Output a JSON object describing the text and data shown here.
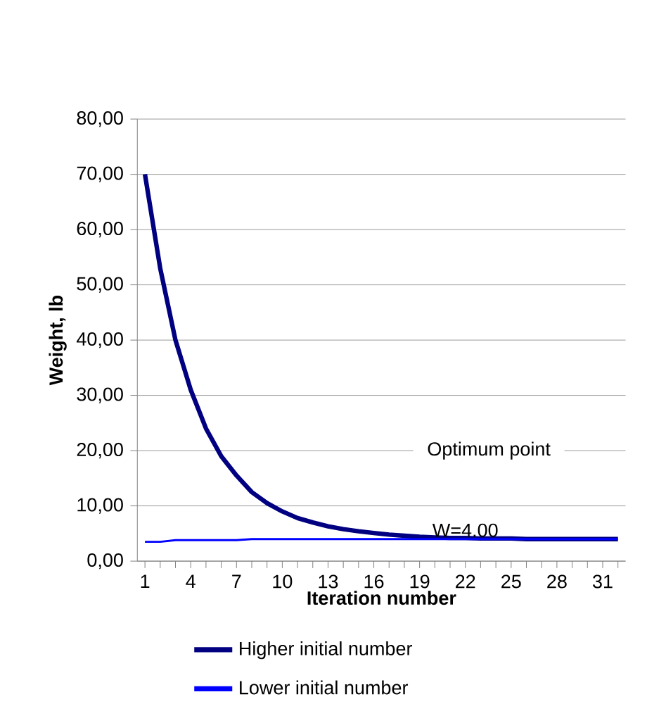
{
  "chart_data": {
    "type": "line",
    "xlabel": "Iteration number",
    "ylabel": "Weight, lb",
    "x": [
      1,
      2,
      3,
      4,
      5,
      6,
      7,
      8,
      9,
      10,
      11,
      12,
      13,
      14,
      15,
      16,
      17,
      18,
      19,
      20,
      21,
      22,
      23,
      24,
      25,
      26,
      27,
      28,
      29,
      30,
      31,
      32
    ],
    "series": [
      {
        "name": "Higher initial number",
        "color": "#000080",
        "values": [
          70,
          53,
          40,
          31,
          24,
          19,
          15.5,
          12.5,
          10.5,
          9,
          7.8,
          7,
          6.3,
          5.8,
          5.4,
          5.1,
          4.8,
          4.6,
          4.4,
          4.3,
          4.2,
          4.2,
          4.1,
          4.1,
          4.1,
          4,
          4,
          4,
          4,
          4,
          4,
          4
        ]
      },
      {
        "name": "Lower initial number",
        "color": "#0000ff",
        "values": [
          3.5,
          3.5,
          3.8,
          3.8,
          3.8,
          3.8,
          3.8,
          4,
          4,
          4,
          4,
          4,
          4,
          4,
          4,
          4,
          4,
          4,
          4,
          4,
          4,
          4,
          4,
          4,
          4,
          4,
          4,
          4,
          4,
          4,
          4,
          4
        ]
      }
    ],
    "xlim": [
      0.5,
      32.5
    ],
    "xticks": [
      1,
      {
        "value": 2,
        "label": null
      },
      {
        "value": 3,
        "label": null
      },
      4,
      {
        "value": 5,
        "label": null
      },
      {
        "value": 6,
        "label": null
      },
      7,
      {
        "value": 8,
        "label": null
      },
      {
        "value": 9,
        "label": null
      },
      10,
      {
        "value": 11,
        "label": null
      },
      {
        "value": 12,
        "label": null
      },
      13,
      {
        "value": 14,
        "label": null
      },
      {
        "value": 15,
        "label": null
      },
      16,
      {
        "value": 17,
        "label": null
      },
      {
        "value": 18,
        "label": null
      },
      19,
      {
        "value": 20,
        "label": null
      },
      {
        "value": 21,
        "label": null
      },
      22,
      {
        "value": 23,
        "label": null
      },
      {
        "value": 24,
        "label": null
      },
      25,
      {
        "value": 26,
        "label": null
      },
      {
        "value": 27,
        "label": null
      },
      28,
      {
        "value": 29,
        "label": null
      },
      {
        "value": 30,
        "label": null
      },
      31,
      {
        "value": 32,
        "label": null
      }
    ],
    "ylim": [
      0,
      80
    ],
    "yticks": [
      {
        "value": 0,
        "label": "0,00"
      },
      {
        "value": 10,
        "label": "10,00"
      },
      {
        "value": 20,
        "label": "20,00"
      },
      {
        "value": 30,
        "label": "30,00"
      },
      {
        "value": 40,
        "label": "40,00"
      },
      {
        "value": 50,
        "label": "50,00"
      },
      {
        "value": 60,
        "label": "60,00"
      },
      {
        "value": 70,
        "label": "70,00"
      },
      {
        "value": 80,
        "label": "80,00"
      }
    ],
    "grid": "y",
    "legend": "bottom",
    "marker": "none",
    "line_style": "solid",
    "annotations": [
      "Optimum point",
      {
        "text": "W=4.00",
        "x": 22,
        "y": 4
      }
    ]
  }
}
